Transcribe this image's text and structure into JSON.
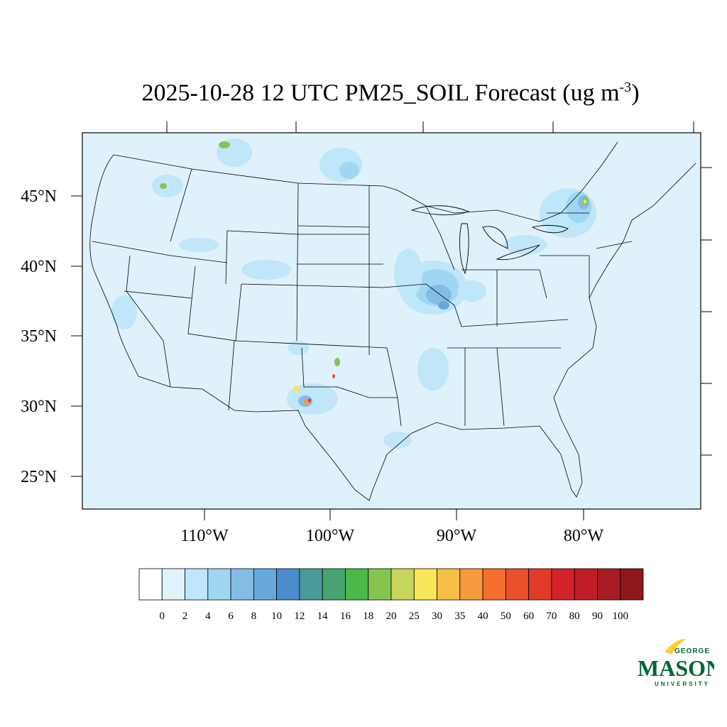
{
  "title": {
    "main": "2025-10-28 12 UTC PM25_SOIL Forecast (ug m",
    "superscript": "-3",
    "close": ")"
  },
  "map": {
    "background_color": "#dff1fb",
    "lat_labels": [
      "45°N",
      "40°N",
      "35°N",
      "30°N",
      "25°N"
    ],
    "lon_labels": [
      "110°W",
      "100°W",
      "90°W",
      "80°W"
    ]
  },
  "colorbar": {
    "colors": [
      "#ffffff",
      "#e0f3fc",
      "#bfe6f9",
      "#9fd7f3",
      "#83bde6",
      "#66a8dc",
      "#4a8ccc",
      "#4a9a9a",
      "#47a46f",
      "#4cb84a",
      "#86c452",
      "#c5d65a",
      "#f7e65a",
      "#f8be4a",
      "#f79a3c",
      "#f46f2d",
      "#e9502b",
      "#e03a28",
      "#d4222a",
      "#bf1e26",
      "#a91b24",
      "#8e1819"
    ],
    "labels": [
      "0",
      "2",
      "4",
      "6",
      "8",
      "10",
      "12",
      "14",
      "16",
      "18",
      "20",
      "25",
      "30",
      "35",
      "40",
      "50",
      "60",
      "70",
      "80",
      "90",
      "100"
    ]
  },
  "logo": {
    "line1": "GEORGE",
    "line2": "MASON",
    "line3": "UNIVERSITY",
    "green": "#006633",
    "gold": "#ffcc33"
  }
}
